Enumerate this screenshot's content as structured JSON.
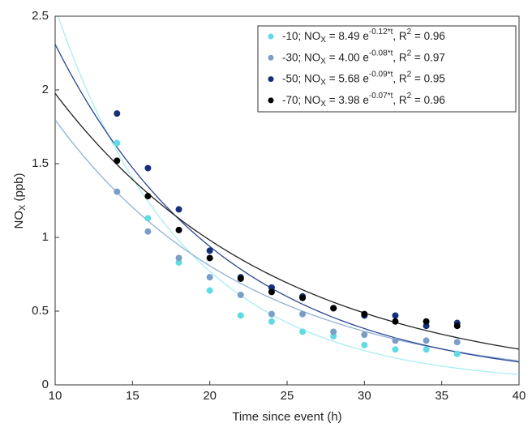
{
  "chart_data": {
    "type": "scatter",
    "xlabel": "Time since event (h)",
    "ylabel": {
      "main": "NO",
      "sub": "X",
      "unit": " (ppb)"
    },
    "xlim": [
      10,
      40
    ],
    "xticks": [
      10,
      15,
      20,
      25,
      30,
      35,
      40
    ],
    "ylim": [
      0,
      2.5
    ],
    "yticks": [
      0,
      0.5,
      1,
      1.5,
      2,
      2.5
    ],
    "grid": false,
    "legend": "upper right",
    "fit_text": {
      "sep": "; ",
      "lhs": "NO",
      "sub": "X",
      "eq": " = ",
      "base": " e",
      "exp_var": "*t",
      "r": ", R",
      "sup": "2"
    },
    "x": [
      14,
      16,
      18,
      20,
      22,
      24,
      26,
      28,
      30,
      32,
      34,
      36
    ],
    "series": [
      {
        "name": "-10",
        "color": "#5fdbe3",
        "line_color": "#a8eef3",
        "values": [
          1.64,
          1.13,
          0.83,
          0.64,
          0.47,
          0.43,
          0.36,
          0.33,
          0.27,
          0.24,
          0.24,
          0.21
        ],
        "fit": {
          "a": 8.49,
          "k": -0.12,
          "r2": 0.96
        }
      },
      {
        "name": "-30",
        "color": "#7b9ec8",
        "line_color": "#8fb0d6",
        "values": [
          1.31,
          1.04,
          0.86,
          0.73,
          0.61,
          0.48,
          0.48,
          0.36,
          0.34,
          0.3,
          0.3,
          0.29
        ],
        "fit": {
          "a": {
            "value": 4,
            "label": "4.00"
          },
          "k": -0.08,
          "r2": 0.97
        }
      },
      {
        "name": "-50",
        "color": "#14307a",
        "line_color": "#2a4590",
        "values": [
          1.84,
          1.47,
          1.19,
          0.91,
          0.73,
          0.66,
          0.6,
          0.52,
          0.47,
          0.47,
          0.4,
          0.42
        ],
        "fit": {
          "a": 5.68,
          "k": -0.09,
          "r2": 0.95
        }
      },
      {
        "name": "-70",
        "color": "#000000",
        "line_color": "#222222",
        "values": [
          1.52,
          1.28,
          1.05,
          0.86,
          0.72,
          0.63,
          0.59,
          0.52,
          0.48,
          0.43,
          0.43,
          0.4
        ],
        "fit": {
          "a": 3.98,
          "k": -0.07,
          "r2": 0.96
        }
      }
    ]
  }
}
